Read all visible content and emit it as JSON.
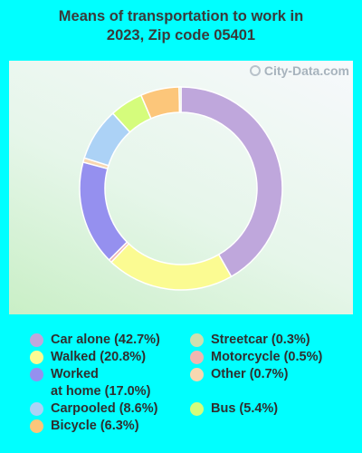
{
  "title": "Means of transportation to work in 2023, Zip code 05401",
  "watermark": "City-Data.com",
  "chart_data": {
    "type": "pie",
    "donut": true,
    "title": "Means of transportation to work in 2023, Zip code 05401",
    "slices": [
      {
        "label": "Car alone (42.7%)",
        "value": 42.7,
        "color": "#bfa7dc"
      },
      {
        "label": "Walked (20.8%)",
        "value": 20.8,
        "color": "#fbfb92"
      },
      {
        "label": "Motorcycle (0.5%)",
        "value": 0.5,
        "color": "#f0b6b0"
      },
      {
        "label": "Worked\nat home (17.0%)",
        "value": 17.0,
        "color": "#9590ef"
      },
      {
        "label": "Other (0.7%)",
        "value": 0.7,
        "color": "#f8d7b0"
      },
      {
        "label": "Carpooled (8.6%)",
        "value": 8.6,
        "color": "#acd2f6"
      },
      {
        "label": "Bus (5.4%)",
        "value": 5.4,
        "color": "#d5fc7c"
      },
      {
        "label": "Bicycle (6.3%)",
        "value": 6.3,
        "color": "#fcc67a"
      },
      {
        "label": "Streetcar (0.3%)",
        "value": 0.3,
        "color": "#cde0b0"
      }
    ],
    "legend_placement": "bottom",
    "legend": [
      {
        "label": "Car alone (42.7%)",
        "color": "#bfa7dc"
      },
      {
        "label": "Walked (20.8%)",
        "color": "#fbfb92"
      },
      {
        "label": "Worked\nat home (17.0%)",
        "color": "#9590ef"
      },
      {
        "label": "Carpooled (8.6%)",
        "color": "#acd2f6"
      },
      {
        "label": "Bicycle (6.3%)",
        "color": "#fcc67a"
      },
      {
        "label": "Streetcar (0.3%)",
        "color": "#cde0b0"
      },
      {
        "label": "Motorcycle (0.5%)",
        "color": "#f0b6b0"
      },
      {
        "label": "Other (0.7%)",
        "color": "#f8d7b0"
      },
      {
        "label": "Bus (5.4%)",
        "color": "#d5fc7c"
      }
    ]
  }
}
